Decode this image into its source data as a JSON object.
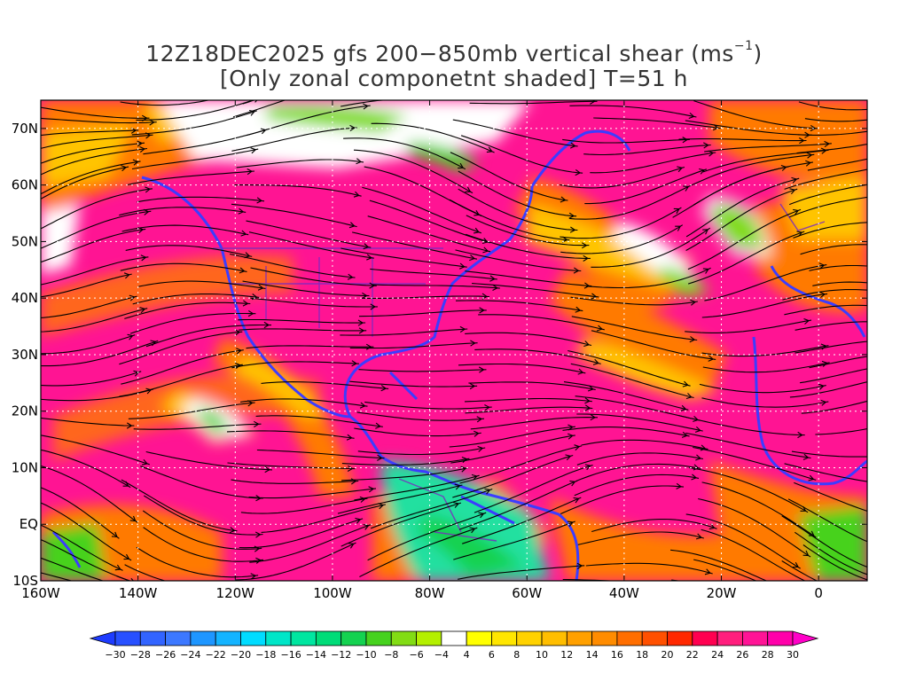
{
  "title": {
    "line1_main": "12Z18DEC2025 gfs 200−850mb vertical shear (ms",
    "line1_sup": "−1",
    "line1_end": ")",
    "line2": "[Only zonal componetnt shaded] T=51 h"
  },
  "axes": {
    "y_labels": [
      "70N",
      "60N",
      "50N",
      "40N",
      "30N",
      "20N",
      "10N",
      "EQ",
      "10S"
    ],
    "y_values": [
      70,
      60,
      50,
      40,
      30,
      20,
      10,
      0,
      -10
    ],
    "x_labels": [
      "160W",
      "140W",
      "120W",
      "100W",
      "80W",
      "60W",
      "40W",
      "20W",
      "0"
    ],
    "x_values": [
      -160,
      -140,
      -120,
      -100,
      -80,
      -60,
      -40,
      -20,
      0
    ],
    "lon_range": [
      -160,
      10
    ],
    "lat_range": [
      -10,
      75
    ]
  },
  "colorbar": {
    "labels": [
      "−30",
      "−28",
      "−26",
      "−24",
      "−22",
      "−20",
      "−18",
      "−16",
      "−14",
      "−12",
      "−10",
      "−8",
      "−6",
      "−4",
      "4",
      "6",
      "8",
      "10",
      "12",
      "14",
      "16",
      "18",
      "20",
      "22",
      "24",
      "26",
      "28",
      "30"
    ],
    "colors": [
      "#1e3cff",
      "#2850ff",
      "#3264ff",
      "#3c78ff",
      "#1e96ff",
      "#14b4ff",
      "#00dcff",
      "#00e6c8",
      "#00e6a0",
      "#00dc78",
      "#14d250",
      "#46d21e",
      "#82dc14",
      "#b4f000",
      "#ffffff",
      "#ffff00",
      "#ffe600",
      "#ffd200",
      "#ffbe00",
      "#ffa000",
      "#ff8c00",
      "#ff6e00",
      "#ff5000",
      "#ff2800",
      "#ff0050",
      "#ff1e7d",
      "#ff1496",
      "#ff00aa",
      "#ff00c8"
    ]
  },
  "colors": {
    "strong_shear": "#ff1493",
    "orange_band": "#ff7a00",
    "yellow_band": "#ffc400",
    "coast": "#3c3cff",
    "streamline": "#000000",
    "grid": "#ffffff"
  }
}
